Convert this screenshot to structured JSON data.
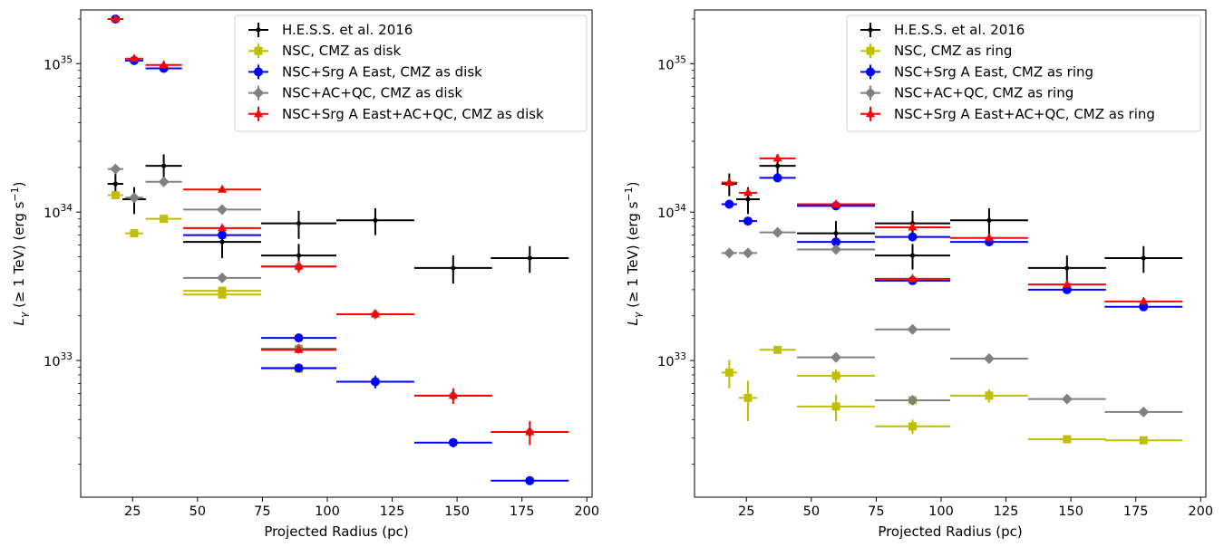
{
  "chart_data": [
    {
      "type": "scatter",
      "panel": "left",
      "xlabel": "Projected Radius (pc)",
      "ylabel_main": "L",
      "ylabel_sub": "γ",
      "ylabel_rest": " (≥ 1 TeV) (erg s",
      "ylabel_sup": "−1",
      "ylabel_close": ")",
      "xlim": [
        5,
        202
      ],
      "ylim": [
        1.2e+32,
        2.3e+35
      ],
      "yscale": "log",
      "xticks": [
        25,
        50,
        75,
        100,
        125,
        150,
        175,
        200
      ],
      "xtick_labels": [
        "25",
        "50",
        "75",
        "100",
        "125",
        "150",
        "175",
        "200"
      ],
      "yticks": [
        1e+33,
        1e+34,
        1e+35
      ],
      "ytick_bases": [
        "10",
        "10",
        "10"
      ],
      "ytick_exps": [
        "33",
        "34",
        "35"
      ],
      "legend_position": "upper-right",
      "series": [
        {
          "name": "H.E.S.S. et al. 2016",
          "color": "#000000",
          "marker": "dot",
          "points": [
            [
              18.4,
              1.55e+34,
              3,
              2.7e+33
            ],
            [
              25.6,
              1.22e+34,
              4.5,
              2.5e+33
            ],
            [
              37,
              2.05e+34,
              7,
              4e+33
            ],
            [
              59.5,
              6.3e+33,
              15,
              1.4e+33
            ],
            [
              89,
              5.1e+33,
              14.5,
              1e+33
            ],
            [
              89,
              8.4e+33,
              14.5,
              1.8e+33
            ],
            [
              118.5,
              8.8e+33,
              15,
              1.8e+33
            ],
            [
              148.5,
              4.2e+33,
              15,
              9e+32
            ],
            [
              178,
              4.9e+33,
              15,
              1e+33
            ]
          ]
        },
        {
          "name": "NSC, CMZ as disk",
          "color": "#bfbf00",
          "marker": "square",
          "points": [
            [
              18.4,
              1.3e+34,
              3,
              0
            ],
            [
              25.6,
              7.2e+33,
              3.5,
              0
            ],
            [
              37,
              9e+33,
              7,
              0
            ],
            [
              59.5,
              2.95e+33,
              15,
              0
            ],
            [
              59.5,
              2.78e+33,
              15,
              0
            ],
            [
              89,
              1.2e+33,
              14.5,
              0
            ],
            [
              89,
              8.8e+32,
              14.5,
              0
            ]
          ]
        },
        {
          "name": "NSC+Srg A East, CMZ as disk",
          "color": "#0000ff",
          "marker": "circle",
          "points": [
            [
              18.4,
              2e+35,
              3,
              0
            ],
            [
              25.6,
              1.05e+35,
              3.5,
              0
            ],
            [
              37,
              9.3e+34,
              7,
              0
            ],
            [
              59.5,
              7e+33,
              15,
              0
            ],
            [
              89,
              1.42e+33,
              14.5,
              0
            ],
            [
              89,
              8.9e+32,
              14.5,
              0
            ],
            [
              118.5,
              7.2e+32,
              15,
              7e+31
            ],
            [
              148.5,
              2.8e+32,
              15,
              2e+31
            ],
            [
              178,
              1.55e+32,
              15,
              0
            ]
          ]
        },
        {
          "name": "NSC+AC+QC, CMZ as disk",
          "color": "#808080",
          "marker": "diamond",
          "points": [
            [
              18.4,
              1.95e+34,
              3,
              0
            ],
            [
              25.6,
              1.25e+34,
              3.5,
              0
            ],
            [
              37,
              1.6e+34,
              7,
              0
            ],
            [
              59.5,
              1.04e+34,
              15,
              0
            ],
            [
              59.5,
              3.6e+33,
              15,
              0
            ],
            [
              89,
              4.3e+33,
              14.5,
              0
            ],
            [
              89,
              1.2e+33,
              14.5,
              0
            ],
            [
              118.5,
              2.05e+33,
              15,
              0
            ],
            [
              148.5,
              5.8e+32,
              15,
              0
            ],
            [
              178,
              3.3e+32,
              15,
              0
            ]
          ]
        },
        {
          "name": "NSC+Srg A East+AC+QC, CMZ as disk",
          "color": "#ff0000",
          "marker": "triangle",
          "points": [
            [
              18.4,
              2e+35,
              3,
              0
            ],
            [
              25.6,
              1.08e+35,
              3.5,
              0
            ],
            [
              37,
              9.8e+34,
              7,
              0
            ],
            [
              59.5,
              1.42e+34,
              15,
              0
            ],
            [
              59.5,
              7.8e+33,
              15,
              0
            ],
            [
              89,
              4.3e+33,
              14.5,
              4e+32
            ],
            [
              89,
              1.18e+33,
              14.5,
              0
            ],
            [
              118.5,
              2.05e+33,
              15,
              1e+32
            ],
            [
              148.5,
              5.8e+32,
              15,
              7e+31
            ],
            [
              178,
              3.3e+32,
              15,
              6e+31
            ]
          ]
        }
      ]
    },
    {
      "type": "scatter",
      "panel": "right",
      "xlabel": "Projected Radius (pc)",
      "ylabel_main": "L",
      "ylabel_sub": "γ",
      "ylabel_rest": " (≥ 1 TeV) (erg s",
      "ylabel_sup": "−1",
      "ylabel_close": ")",
      "xlim": [
        5,
        202
      ],
      "ylim": [
        1.2e+32,
        2.3e+35
      ],
      "yscale": "log",
      "xticks": [
        25,
        50,
        75,
        100,
        125,
        150,
        175,
        200
      ],
      "xtick_labels": [
        "25",
        "50",
        "75",
        "100",
        "125",
        "150",
        "175",
        "200"
      ],
      "yticks": [
        1e+33,
        1e+34,
        1e+35
      ],
      "ytick_bases": [
        "10",
        "10",
        "10"
      ],
      "ytick_exps": [
        "33",
        "34",
        "35"
      ],
      "legend_position": "upper-right",
      "series": [
        {
          "name": "H.E.S.S. et al. 2016",
          "color": "#000000",
          "marker": "dot",
          "points": [
            [
              18.4,
              1.55e+34,
              3,
              2.7e+33
            ],
            [
              25.6,
              1.22e+34,
              4.5,
              2.5e+33
            ],
            [
              37,
              2.05e+34,
              7,
              4e+33
            ],
            [
              59.5,
              7.2e+33,
              15,
              1.5e+33
            ],
            [
              89,
              5.1e+33,
              14.5,
              1e+33
            ],
            [
              89,
              8.4e+33,
              14.5,
              1.8e+33
            ],
            [
              118.5,
              8.8e+33,
              15,
              1.8e+33
            ],
            [
              148.5,
              4.2e+33,
              15,
              9e+32
            ],
            [
              178,
              4.9e+33,
              15,
              1e+33
            ]
          ]
        },
        {
          "name": "NSC, CMZ as ring",
          "color": "#bfbf00",
          "marker": "square",
          "points": [
            [
              18.4,
              8.3e+32,
              3,
              1.8e+32
            ],
            [
              25.6,
              5.6e+32,
              3.5,
              1.7e+32
            ],
            [
              37,
              1.18e+33,
              7,
              7e+31
            ],
            [
              59.5,
              7.9e+32,
              15,
              8e+31
            ],
            [
              59.5,
              4.9e+32,
              15,
              1e+32
            ],
            [
              89,
              5.4e+32,
              14.5,
              0
            ],
            [
              89,
              3.6e+32,
              14.5,
              4e+31
            ],
            [
              118.5,
              5.8e+32,
              15,
              6e+31
            ],
            [
              148.5,
              2.95e+32,
              15,
              0
            ],
            [
              178,
              2.9e+32,
              15,
              0
            ]
          ]
        },
        {
          "name": "NSC+Srg A East, CMZ as ring",
          "color": "#0000ff",
          "marker": "circle",
          "points": [
            [
              18.4,
              1.13e+34,
              3,
              0
            ],
            [
              25.6,
              8.7e+33,
              3.5,
              0
            ],
            [
              37,
              1.7e+34,
              7,
              0
            ],
            [
              59.5,
              1.1e+34,
              15,
              0
            ],
            [
              59.5,
              6.3e+33,
              15,
              0
            ],
            [
              89,
              6.8e+33,
              14.5,
              0
            ],
            [
              89,
              3.45e+33,
              14.5,
              0
            ],
            [
              118.5,
              6.3e+33,
              15,
              0
            ],
            [
              148.5,
              3e+33,
              15,
              0
            ],
            [
              178,
              2.3e+33,
              15,
              0
            ]
          ]
        },
        {
          "name": "NSC+AC+QC, CMZ as ring",
          "color": "#808080",
          "marker": "diamond",
          "points": [
            [
              18.4,
              5.3e+33,
              3,
              0
            ],
            [
              25.6,
              5.3e+33,
              3.5,
              0
            ],
            [
              37,
              7.3e+33,
              7,
              0
            ],
            [
              59.5,
              5.6e+33,
              15,
              0
            ],
            [
              59.5,
              1.05e+33,
              15,
              0
            ],
            [
              89,
              1.62e+33,
              14.5,
              0
            ],
            [
              89,
              5.4e+32,
              14.5,
              0
            ],
            [
              118.5,
              1.03e+33,
              15,
              0
            ],
            [
              148.5,
              5.5e+32,
              15,
              0
            ],
            [
              178,
              4.5e+32,
              15,
              0
            ]
          ]
        },
        {
          "name": "NSC+Srg A East+AC+QC, CMZ as ring",
          "color": "#ff0000",
          "marker": "triangle",
          "points": [
            [
              18.4,
              1.58e+34,
              3,
              0
            ],
            [
              25.6,
              1.35e+34,
              3.5,
              0
            ],
            [
              37,
              2.3e+34,
              7,
              0
            ],
            [
              59.5,
              1.13e+34,
              15,
              0
            ],
            [
              89,
              7.9e+33,
              14.5,
              0
            ],
            [
              89,
              3.55e+33,
              14.5,
              0
            ],
            [
              118.5,
              6.7e+33,
              15,
              0
            ],
            [
              148.5,
              3.25e+33,
              15,
              0
            ],
            [
              178,
              2.5e+33,
              15,
              0
            ]
          ]
        }
      ]
    }
  ]
}
